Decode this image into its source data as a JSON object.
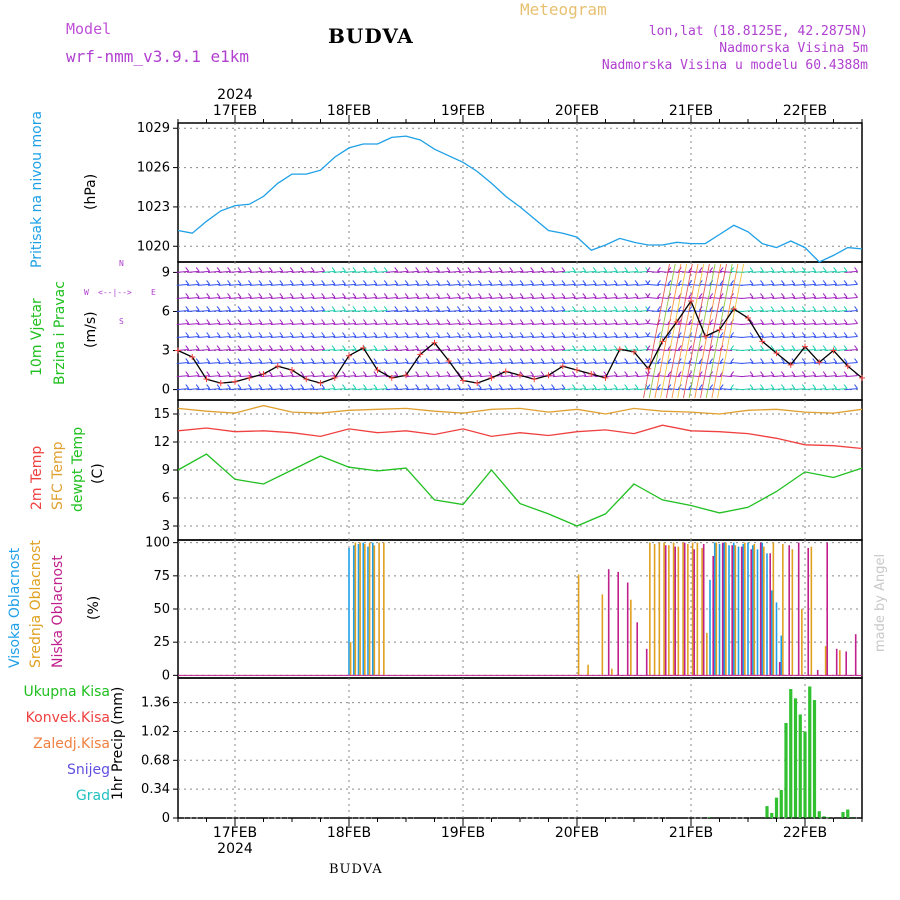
{
  "header": {
    "model_label": "Model",
    "model_name": "wrf-nmm_v3.9.1  e1km",
    "station_title": "BUDVA",
    "product_title": "Meteogram",
    "coords": "lon,lat (18.8125E, 42.2875N)",
    "elevation": "Nadmorska Visina 5m",
    "model_elevation": "Nadmorska Visina u modelu 60.4388m"
  },
  "footer": {
    "station": "BUDVA",
    "credit": "made by Angel"
  },
  "colors": {
    "pressure": "#1ea0e6",
    "t2m": "#f04040",
    "sfc": "#e0a030",
    "dewpt": "#20c020",
    "high_cloud": "#20a0e8",
    "mid_cloud": "#e0a020",
    "low_cloud": "#c0208c",
    "precip": "#30c030",
    "wind_magenta": "#a020c0",
    "wind_blue": "#3050f0",
    "wind_teal": "#20d0b0"
  },
  "time_axis": {
    "year_label": "2024",
    "date_labels": [
      "17FEB",
      "18FEB",
      "19FEB",
      "20FEB",
      "21FEB",
      "22FEB"
    ]
  },
  "panels": {
    "pressure": {
      "label": "Pritisak na nivou mora",
      "unit": "(hPa)",
      "ticks": [
        "1029",
        "1026",
        "1023",
        "1020"
      ]
    },
    "wind": {
      "label1": "10m Vjetar",
      "label2": "Brzina i Pravac",
      "unit": "(m/s)",
      "compass_w": "W",
      "compass_e": "E",
      "compass_n": "N",
      "compass_s": "S",
      "ticks": [
        "9",
        "6",
        "3",
        "0"
      ]
    },
    "temperature": {
      "label1": "2m Temp",
      "label2": "SFC Temp",
      "label3": "dewpt Temp",
      "unit": "(C)",
      "ticks": [
        "15",
        "12",
        "9",
        "6",
        "3"
      ]
    },
    "cloud": {
      "label1": "Visoka Oblacnost",
      "label2": "Srednja Oblacnost",
      "label3": "Niska Oblacnost",
      "unit": "(%)",
      "ticks": [
        "100",
        "75",
        "50",
        "25",
        "0"
      ]
    },
    "precip": {
      "legend": [
        "Ukupna Kisa",
        "Konvek.Kisa",
        "Zaledj.Kisa",
        "Snijeg",
        "Grad"
      ],
      "unit": "1hr Precip (mm)",
      "ticks": [
        "1.36",
        "1.02",
        "0.68",
        "0.34",
        "0"
      ]
    }
  },
  "chart_data": [
    {
      "type": "line",
      "title": "Pritisak na nivou mora",
      "ylabel": "(hPa)",
      "x_unit": "hours since 16FEB 12:00",
      "ylim": [
        1018.8,
        1029.4
      ],
      "series": [
        {
          "name": "Pritisak na nivou mora",
          "x": [
            0,
            3,
            6,
            9,
            12,
            15,
            18,
            21,
            24,
            27,
            30,
            33,
            36,
            39,
            42,
            45,
            48,
            51,
            54,
            57,
            60,
            63,
            66,
            69,
            72,
            75,
            78,
            81,
            84,
            87,
            90,
            93,
            96,
            99,
            102,
            105,
            108,
            111,
            114,
            117,
            120,
            123,
            126,
            129,
            132,
            135,
            138,
            141,
            144
          ],
          "values": [
            1021.2,
            1021.0,
            1021.9,
            1022.7,
            1023.1,
            1023.2,
            1023.8,
            1024.8,
            1025.5,
            1025.5,
            1025.8,
            1026.8,
            1027.5,
            1027.8,
            1027.8,
            1028.3,
            1028.4,
            1028.1,
            1027.4,
            1026.9,
            1026.4,
            1025.7,
            1024.8,
            1023.8,
            1023.0,
            1022.1,
            1021.2,
            1021.0,
            1020.7,
            1019.7,
            1020.1,
            1020.6,
            1020.3,
            1020.1,
            1020.1,
            1020.3,
            1020.2,
            1020.2,
            1020.9,
            1021.6,
            1021.1,
            1020.2,
            1019.9,
            1020.4,
            1019.9,
            1018.8,
            1019.3,
            1019.9,
            1019.8
          ]
        }
      ]
    },
    {
      "type": "line",
      "title": "10m Vjetar Brzina i Pravac",
      "ylabel": "(m/s)",
      "x_unit": "hours since 16FEB 12:00",
      "ylim": [
        -0.8,
        9.8
      ],
      "series": [
        {
          "name": "10m Vjetar",
          "x": [
            0,
            3,
            6,
            9,
            12,
            15,
            18,
            21,
            24,
            27,
            30,
            33,
            36,
            39,
            42,
            45,
            48,
            51,
            54,
            57,
            60,
            63,
            66,
            69,
            72,
            75,
            78,
            81,
            84,
            87,
            90,
            93,
            96,
            99,
            102,
            105,
            108,
            111,
            114,
            117,
            120,
            123,
            126,
            129,
            132,
            135,
            138,
            141,
            144
          ],
          "values": [
            3.0,
            2.5,
            0.8,
            0.5,
            0.6,
            0.9,
            1.2,
            1.8,
            1.5,
            0.8,
            0.5,
            0.9,
            2.6,
            3.2,
            1.5,
            0.9,
            1.1,
            2.7,
            3.6,
            2.2,
            0.7,
            0.5,
            0.9,
            1.4,
            1.1,
            0.8,
            1.1,
            1.8,
            1.5,
            1.2,
            0.9,
            3.1,
            2.9,
            1.6,
            3.7,
            5.2,
            6.8,
            4.1,
            4.6,
            6.2,
            5.5,
            3.7,
            2.8,
            1.9,
            3.3,
            2.1,
            3.0,
            1.8,
            0.9
          ]
        }
      ]
    },
    {
      "type": "line",
      "title": "2m Temp / SFC Temp / dewpt Temp",
      "ylabel": "(C)",
      "x_unit": "hours since 16FEB 12:00",
      "ylim": [
        1.5,
        16.5
      ],
      "series": [
        {
          "name": "SFC Temp",
          "x": [
            0,
            6,
            12,
            18,
            24,
            30,
            36,
            42,
            48,
            54,
            60,
            66,
            72,
            78,
            84,
            90,
            96,
            102,
            108,
            114,
            120,
            126,
            132,
            138,
            144
          ],
          "values": [
            15.6,
            15.3,
            15.1,
            15.9,
            15.2,
            15.1,
            15.4,
            15.5,
            15.6,
            15.3,
            15.1,
            15.5,
            15.6,
            15.2,
            15.5,
            15.0,
            15.6,
            15.3,
            15.2,
            15.0,
            15.4,
            15.5,
            15.2,
            15.1,
            15.5
          ]
        },
        {
          "name": "2m Temp",
          "x": [
            0,
            6,
            12,
            18,
            24,
            30,
            36,
            42,
            48,
            54,
            60,
            66,
            72,
            78,
            84,
            90,
            96,
            102,
            108,
            114,
            120,
            126,
            132,
            138,
            144
          ],
          "values": [
            13.2,
            13.5,
            13.1,
            13.2,
            13.0,
            12.6,
            13.4,
            13.0,
            13.2,
            12.8,
            13.4,
            12.6,
            13.0,
            12.7,
            13.1,
            13.3,
            12.9,
            13.8,
            13.2,
            13.1,
            12.9,
            12.4,
            11.7,
            11.6,
            11.3
          ]
        },
        {
          "name": "dewpt Temp",
          "x": [
            0,
            6,
            12,
            18,
            24,
            30,
            36,
            42,
            48,
            54,
            60,
            66,
            72,
            78,
            84,
            90,
            96,
            102,
            108,
            114,
            120,
            126,
            132,
            138,
            144
          ],
          "values": [
            9.0,
            10.7,
            8.0,
            7.5,
            9.0,
            10.5,
            9.3,
            8.9,
            9.2,
            5.8,
            5.3,
            9.0,
            5.4,
            4.3,
            3.0,
            4.3,
            7.5,
            5.8,
            5.2,
            4.4,
            5.0,
            6.7,
            8.8,
            8.2,
            9.2
          ]
        }
      ]
    },
    {
      "type": "bar",
      "title": "Visoka / Srednja / Niska Oblacnost",
      "ylabel": "(%)",
      "x_unit": "hours since 16FEB 12:00",
      "ylim": [
        -2,
        102
      ],
      "series": [
        {
          "name": "Visoka Oblacnost",
          "x": [
            36,
            37,
            38,
            39,
            40,
            41,
            112,
            113,
            114,
            115,
            116,
            117,
            118,
            119,
            120,
            121,
            122,
            123,
            124,
            125,
            126,
            127
          ],
          "values": [
            96,
            98,
            99,
            100,
            97,
            100,
            72,
            100,
            99,
            100,
            98,
            100,
            97,
            99,
            100,
            98,
            95,
            100,
            92,
            64,
            55,
            30
          ]
        },
        {
          "name": "Srednja Oblacnost",
          "x": [
            36,
            37,
            38,
            39,
            40,
            41,
            42,
            43,
            84,
            86,
            89,
            91,
            95,
            99,
            100,
            101,
            102,
            103,
            104,
            105,
            106,
            107,
            108,
            109,
            110,
            111,
            113,
            115,
            117,
            119,
            121,
            123,
            125,
            127,
            129,
            131,
            133,
            136,
            139
          ],
          "values": [
            25,
            100,
            100,
            99,
            100,
            98,
            100,
            100,
            76,
            8,
            61,
            5,
            57,
            100,
            99,
            100,
            100,
            98,
            100,
            97,
            100,
            99,
            100,
            100,
            96,
            32,
            100,
            100,
            98,
            100,
            99,
            97,
            100,
            99,
            95,
            50,
            97,
            22,
            19
          ]
        },
        {
          "name": "Niska Oblacnost",
          "x": [
            90,
            92,
            94,
            96,
            98,
            102,
            104,
            106,
            108,
            110,
            112,
            114,
            116,
            118,
            120,
            122,
            124,
            126,
            128,
            130,
            132,
            134,
            136,
            138,
            140,
            142
          ],
          "values": [
            80,
            78,
            70,
            40,
            20,
            98,
            97,
            100,
            95,
            99,
            90,
            100,
            98,
            97,
            95,
            100,
            92,
            10,
            98,
            100,
            96,
            4,
            100,
            20,
            18,
            31
          ]
        }
      ]
    },
    {
      "type": "bar",
      "title": "1hr Precip",
      "ylabel": "1hr Precip (mm)",
      "x_unit": "hours since 16FEB 12:00",
      "ylim": [
        0,
        1.65
      ],
      "series": [
        {
          "name": "Ukupna Kisa",
          "x": [
            112,
            124,
            125,
            126,
            127,
            128,
            129,
            130,
            131,
            132,
            133,
            134,
            135,
            136,
            137,
            138,
            139,
            140,
            141,
            142
          ],
          "values": [
            0.01,
            0.14,
            0.06,
            0.24,
            0.33,
            1.12,
            1.52,
            1.41,
            1.22,
            1.02,
            1.55,
            1.39,
            0.08,
            0.02,
            0.01,
            0.0,
            0.0,
            0.07,
            0.1,
            0.01
          ]
        }
      ]
    }
  ]
}
